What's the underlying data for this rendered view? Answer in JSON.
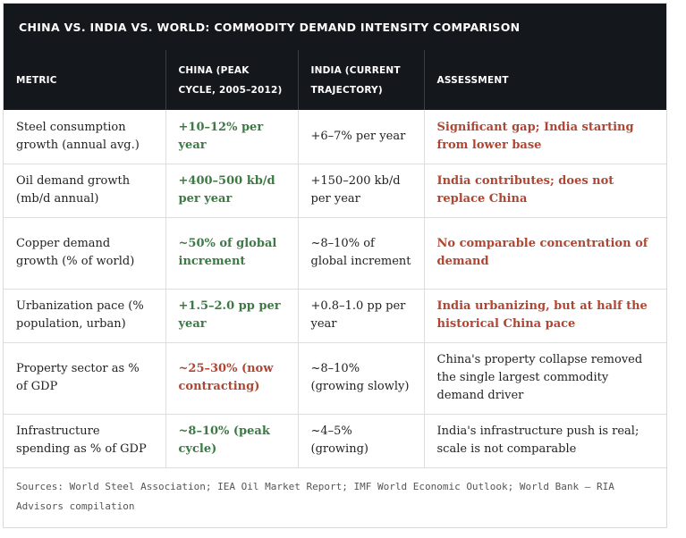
{
  "title": "CHINA VS. INDIA VS. WORLD: COMMODITY DEMAND INTENSITY COMPARISON",
  "columns": [
    "METRIC",
    "CHINA (PEAK CYCLE, 2005–2012)",
    "INDIA (CURRENT TRAJECTORY)",
    "ASSESSMENT"
  ],
  "rows": [
    {
      "metric": "Steel consumption growth (annual avg.)",
      "china": "+10–12% per year",
      "india": "+6–7% per year",
      "assessment": "Significant gap; India starting from lower base"
    },
    {
      "metric": "Oil demand growth (mb/d annual)",
      "china": "+400–500 kb/d per year",
      "india": "+150–200 kb/d per year",
      "assessment": "India contributes; does not replace China"
    },
    {
      "metric": "Copper demand growth (% of world)",
      "china": "~50% of global increment",
      "india": "~8–10% of global increment",
      "assessment": "No comparable concentration of demand"
    },
    {
      "metric": "Urbanization pace (% population, urban)",
      "china": "+1.5–2.0 pp per year",
      "india": "+0.8–1.0 pp per year",
      "assessment": "India urbanizing, but at half the historical China pace"
    },
    {
      "metric": "Property sector as % of GDP",
      "china": "~25–30% (now contracting)",
      "india": "~8–10% (growing slowly)",
      "assessment": "China's property collapse removed the single largest commodity demand driver"
    },
    {
      "metric": "Infrastructure spending as % of GDP",
      "china": "~8–10% (peak cycle)",
      "india": "~4–5% (growing)",
      "assessment": "India's infrastructure push is real; scale is not comparable"
    }
  ],
  "sources": "Sources: World Steel Association; IEA Oil Market Report; IMF World Economic Outlook; World Bank — RIA Advisors compilation",
  "colors": {
    "header_bg": "#14171c",
    "highlight_green": "#3c7a43",
    "highlight_red": "#b04632"
  }
}
